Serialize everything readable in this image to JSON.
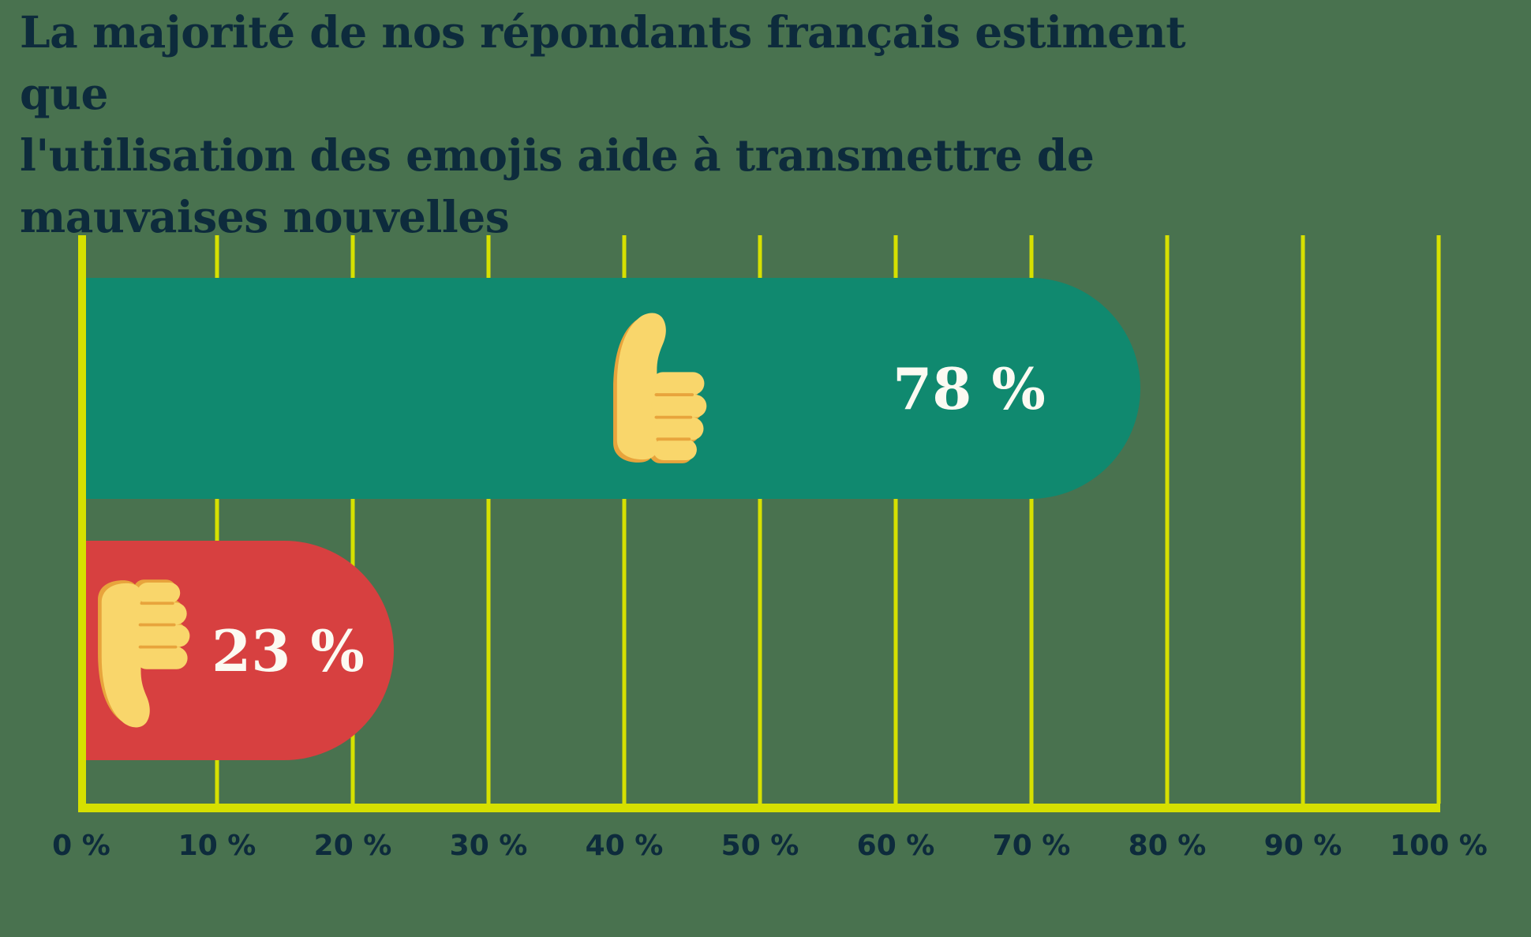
{
  "title_lines": [
    "La majorité de nos répondants français estiment que",
    "l'utilisation des emojis aide à transmettre de",
    "mauvaises nouvelles"
  ],
  "chart_data": {
    "type": "bar",
    "orientation": "horizontal",
    "title": "La majorité de nos répondants français estiment que l'utilisation des emojis aide à transmettre de mauvaises nouvelles",
    "categories": [
      "thumbs-up",
      "thumbs-down"
    ],
    "values": [
      78,
      23
    ],
    "bars": [
      {
        "category": "thumbs-up",
        "value": 78,
        "label": "78 %",
        "icon": "thumbs-up-icon",
        "color": "#10896F"
      },
      {
        "category": "thumbs-down",
        "value": 23,
        "label": "23 %",
        "icon": "thumbs-down-icon",
        "color": "#D74040"
      }
    ],
    "xlim": [
      0,
      100
    ],
    "x_ticks": [
      "0 %",
      "10 %",
      "20 %",
      "30 %",
      "40 %",
      "50 %",
      "60 %",
      "70 %",
      "80 %",
      "90 %",
      "100 %"
    ],
    "grid": "vertical",
    "legend_position": "none"
  },
  "colors": {
    "background": "#49724F",
    "grid-line": "#D6E000",
    "axis-line": "#D6E000",
    "title-text": "#0D2B3C",
    "tick-text": "#0D2B3C",
    "bar-positive": "#10896F",
    "bar-negative": "#D74040",
    "bar-label-text": "#FCFAF2",
    "emoji-skin": "#F9D66B",
    "emoji-shade": "#E8A43C"
  }
}
